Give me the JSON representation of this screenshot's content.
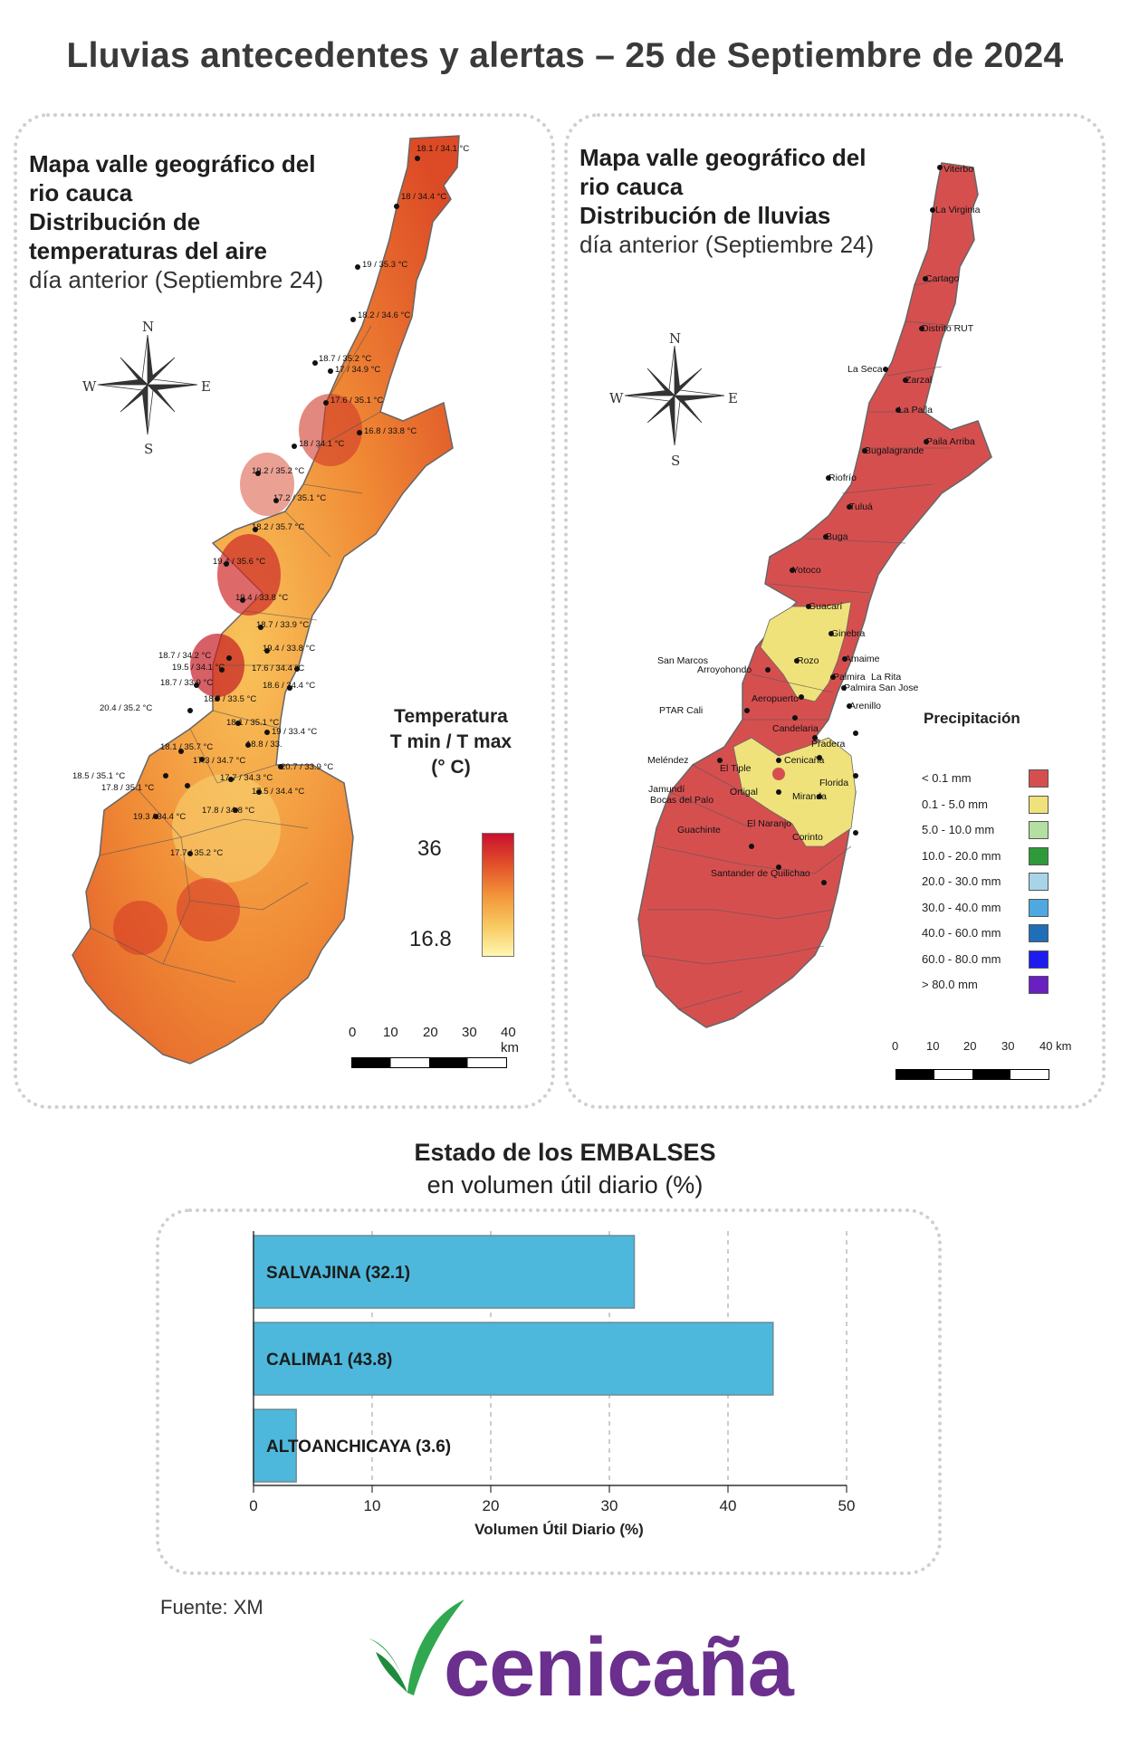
{
  "title": "Lluvias antecedentes y alertas – 25 de Septiembre de 2024",
  "temp_map": {
    "title_line1": "Mapa valle geográfico del",
    "title_line2": "rio cauca",
    "title_line3": "Distribución de",
    "title_line4": "temperaturas del aire",
    "subtitle": "día anterior (Septiembre 24)",
    "legend_title1": "Temperatura",
    "legend_title2": "T min / T max",
    "legend_title3": "(° C)",
    "legend_max": "36",
    "legend_min": "16.8",
    "gradient_colors": [
      "#c8102e",
      "#e2502a",
      "#f3933a",
      "#f8c860",
      "#fff7b0"
    ],
    "stations": [
      "18.1 / 34.1 °C",
      "18 / 34.4 °C",
      "19 / 35.3 °C",
      "18.2 / 34.6 °C",
      "18.7 / 35.2 °C",
      "17 / 34.9 °C",
      "17.6 / 35.1 °C",
      "16.8 / 33.8 °C",
      "18 / 34.1 °C",
      "19.2 / 35.2 °C",
      "17.2 / 35.1 °C",
      "18.2 / 35.7 °C",
      "19.4 / 35.6 °C",
      "19.4 / 33.8 °C",
      "18.7 / 33.9 °C",
      "19.4 / 33.8 °C",
      "18.7 / 34.2 °C",
      "19.5 / 34.1 °C",
      "17.6 / 34.4 °C",
      "18.7 / 33.9 °C",
      "18.6 / 34.4 °C",
      "18.7 / 33.5 °C",
      "20.4 / 35.2 °C",
      "18.1 / 35.1 °C",
      "19 / 33.4 °C",
      "18.8 / 33.",
      "18.1 / 35.7 °C",
      "17.3 / 34.7 °C",
      "20.7 / 33.9 °C",
      "18.5 / 35.1 °C",
      "17.7 / 34.3 °C",
      "17.8 / 35.1 °C",
      "17.5 / 34.4 °C",
      "17.8 / 34.8 °C",
      "19.3 / 34.4 °C",
      "17.7 / 35.2 °C"
    ]
  },
  "rain_map": {
    "title_line1": "Mapa valle geográfico del",
    "title_line2": "rio cauca",
    "title_line3": "Distribución de lluvias",
    "subtitle": "día anterior (Septiembre 24)",
    "legend_title": "Precipitación",
    "legend": [
      {
        "label": "< 0.1 mm",
        "color": "#d64f4f"
      },
      {
        "label": "0.1 - 5.0 mm",
        "color": "#efe27a"
      },
      {
        "label": "5.0 - 10.0 mm",
        "color": "#b3e0a0"
      },
      {
        "label": "10.0 - 20.0 mm",
        "color": "#2e9a3a"
      },
      {
        "label": "20.0 - 30.0 mm",
        "color": "#a8d4ea"
      },
      {
        "label": "30.0 - 40.0 mm",
        "color": "#4fa8e0"
      },
      {
        "label": "40.0 - 60.0 mm",
        "color": "#1f6fb8"
      },
      {
        "label": "60.0 - 80.0 mm",
        "color": "#1c1cf0"
      },
      {
        "label": "> 80.0 mm",
        "color": "#6a1fc0"
      }
    ],
    "cities": [
      "Viterbo",
      "La Virginia",
      "Cartago",
      "Distrito RUT",
      "La Seca",
      "Zarzal",
      "La Paila",
      "Paila Arriba",
      "Bugalagrande",
      "Riofrío",
      "Tuluá",
      "Buga",
      "Yotoco",
      "Guacarí",
      "Ginebra",
      "San Marcos",
      "Rozo",
      "Amaime",
      "Arroyohondo",
      "Palmira",
      "La Rita",
      "Palmira San Jose",
      "PTAR Cali",
      "Aeropuerto",
      "Arenillo",
      "Candelaria",
      "Pradera",
      "Meléndez",
      "El Tiple",
      "Cenicaña",
      "Florida",
      "Jamundí",
      "Bocas del Palo",
      "Ortigal",
      "Miranda",
      "Guachinte",
      "El Naranjo",
      "Corinto",
      "Santander de Quilichao"
    ]
  },
  "compass": {
    "n": "N",
    "s": "S",
    "e": "E",
    "w": "W"
  },
  "scale_bar": {
    "ticks": [
      "0",
      "10",
      "20",
      "30"
    ],
    "end": "40 km"
  },
  "embalses": {
    "title_bold": "Estado de los EMBALSES",
    "subtitle": "en volumen útil diario (%)"
  },
  "chart_data": {
    "type": "bar",
    "orientation": "horizontal",
    "categories": [
      "SALVAJINA",
      "CALIMA1",
      "ALTOANCHICAYA"
    ],
    "bar_labels": [
      "SALVAJINA (32.1)",
      "CALIMA1 (43.8)",
      "ALTOANCHICAYA (3.6)"
    ],
    "values": [
      32.1,
      43.8,
      3.6
    ],
    "xlabel": "Volumen Útil Diario (%)",
    "ylabel": "",
    "xlim": [
      0,
      50
    ],
    "xticks": [
      "0",
      "10",
      "20",
      "30",
      "40",
      "50"
    ],
    "grid": true,
    "bar_color": "#4db8db"
  },
  "source": "Fuente: XM",
  "logo": {
    "text": "cenicaña",
    "color_leaf": "#2fa84f",
    "color_text": "#6b2f8e"
  }
}
